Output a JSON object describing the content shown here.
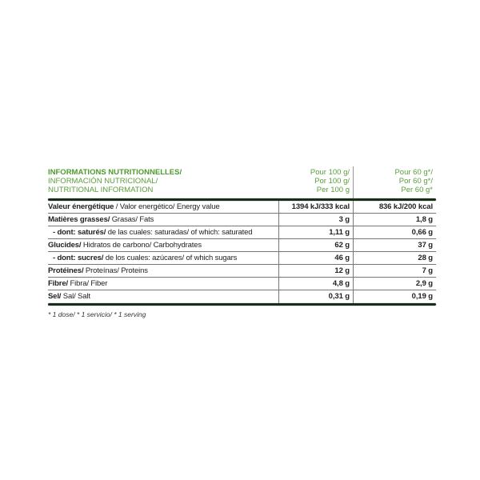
{
  "header": {
    "title_fr": "INFORMATIONS NUTRITIONNELLES/",
    "title_es": "INFORMACIÓN NUTRICIONAL/",
    "title_en": "NUTRITIONAL INFORMATION",
    "col1": [
      "Pour 100 g/",
      "Por 100 g/",
      "Per 100 g"
    ],
    "col2": [
      "Pour 60 g*/",
      "Por 60 g*/",
      "Per 60 g*"
    ]
  },
  "rows": [
    {
      "bold": "Valeur énergétique",
      "rest": " / Valor energético/ Energy value",
      "v100": "1394 kJ/333 kcal",
      "vserv": "836 kJ/200 kcal"
    },
    {
      "bold": "Matières grasses/",
      "rest": " Grasas/ Fats",
      "v100": "3 g",
      "vserv": "1,8 g"
    },
    {
      "bold": "- dont: saturés/",
      "rest": " de las cuales: saturadas/ of which: saturated",
      "v100": "1,11 g",
      "vserv": "0,66 g"
    },
    {
      "bold": "Glucides/",
      "rest": " Hidratos de carbono/ Carbohydrates",
      "v100": "62 g",
      "vserv": "37 g"
    },
    {
      "bold": "- dont: sucres/",
      "rest": " de los cuales: azúcares/ of which sugars",
      "v100": "46 g",
      "vserv": "28 g"
    },
    {
      "bold": "Protéines/",
      "rest": " Proteínas/ Proteins",
      "v100": "12 g",
      "vserv": "7 g"
    },
    {
      "bold": "Fibre/",
      "rest": " Fibra/ Fiber",
      "v100": "4,8 g",
      "vserv": "2,9 g"
    },
    {
      "bold": "Sel/",
      "rest": " Sal/ Salt",
      "v100": "0,31 g",
      "vserv": "0,19 g"
    }
  ],
  "footnote": "* 1 dose/  * 1 servicio/ * 1 serving",
  "colors": {
    "header_green": "#5a9e3a",
    "rule": "#1d2b1d"
  }
}
